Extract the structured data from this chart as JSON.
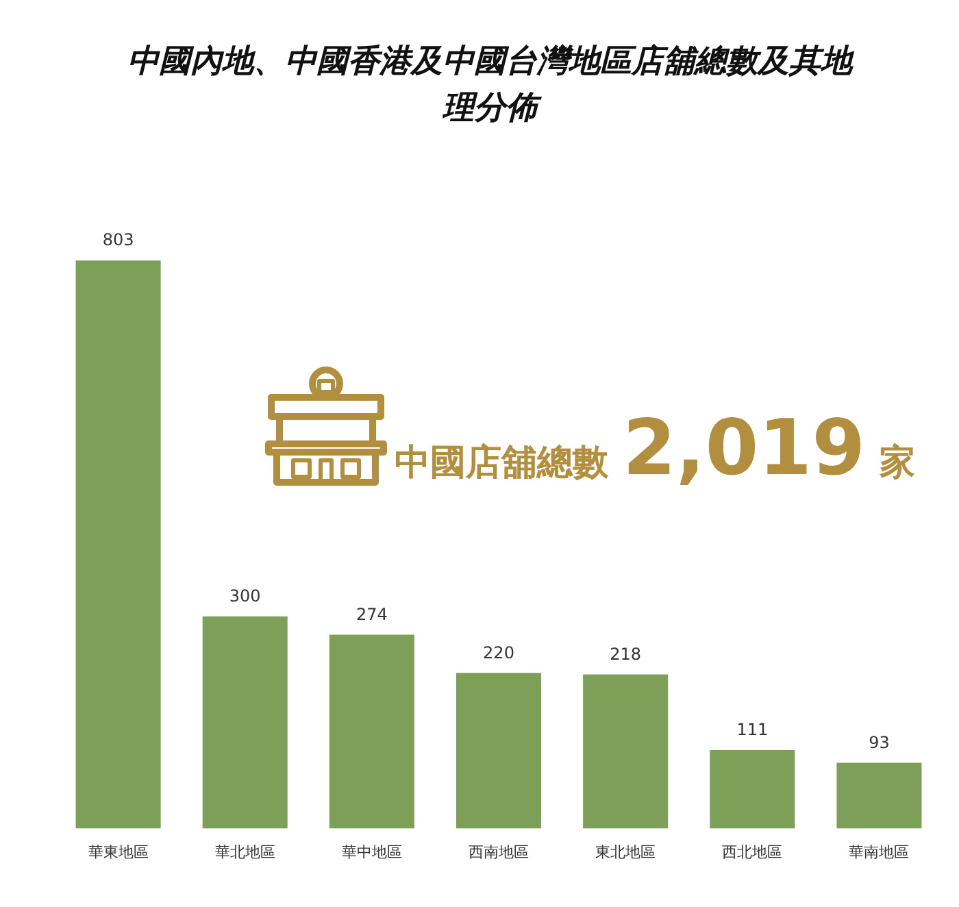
{
  "chart_data": {
    "type": "bar",
    "title": "中國內地、中國香港及中國台灣地區店舖總數及其地理分佈",
    "categories": [
      "華東地區",
      "華北地區",
      "華中地區",
      "西南地區",
      "東北地區",
      "西北地區",
      "華南地區"
    ],
    "values": [
      803,
      300,
      274,
      220,
      218,
      111,
      93
    ],
    "color": "#7e9f58",
    "data_labels": true,
    "tick_labels": "x",
    "grid": false,
    "legend": false,
    "annotations": [
      "中國店舖總數 2,019 家"
    ]
  }
}
